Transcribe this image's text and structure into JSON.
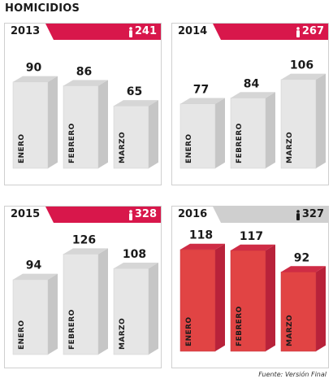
{
  "header": {
    "title": "HOMICIDIOS"
  },
  "footer": {
    "source": "Fuente: Versión Final"
  },
  "colors": {
    "accent": "#d8174b",
    "gray_ribbon": "#cfcfcf",
    "bar_gray": "#e6e6e6",
    "bar_red": "#e14444"
  },
  "icons": {
    "person": "person-icon"
  },
  "chart_data": [
    {
      "type": "bar",
      "title": "2013",
      "total": "241",
      "categories": [
        "ENERO",
        "FEBRERO",
        "MARZO"
      ],
      "values": [
        90,
        86,
        65
      ],
      "highlight": false
    },
    {
      "type": "bar",
      "title": "2014",
      "total": "267",
      "categories": [
        "ENERO",
        "FEBRERO",
        "MARZO"
      ],
      "values": [
        77,
        84,
        106
      ],
      "highlight": false
    },
    {
      "type": "bar",
      "title": "2015",
      "total": "328",
      "categories": [
        "ENERO",
        "FEBRERO",
        "MARZO"
      ],
      "values": [
        94,
        126,
        108
      ],
      "highlight": false
    },
    {
      "type": "bar",
      "title": "2016",
      "total": "327",
      "categories": [
        "ENERO",
        "FEBRERO",
        "MARZO"
      ],
      "values": [
        118,
        117,
        92
      ],
      "highlight": true
    }
  ]
}
